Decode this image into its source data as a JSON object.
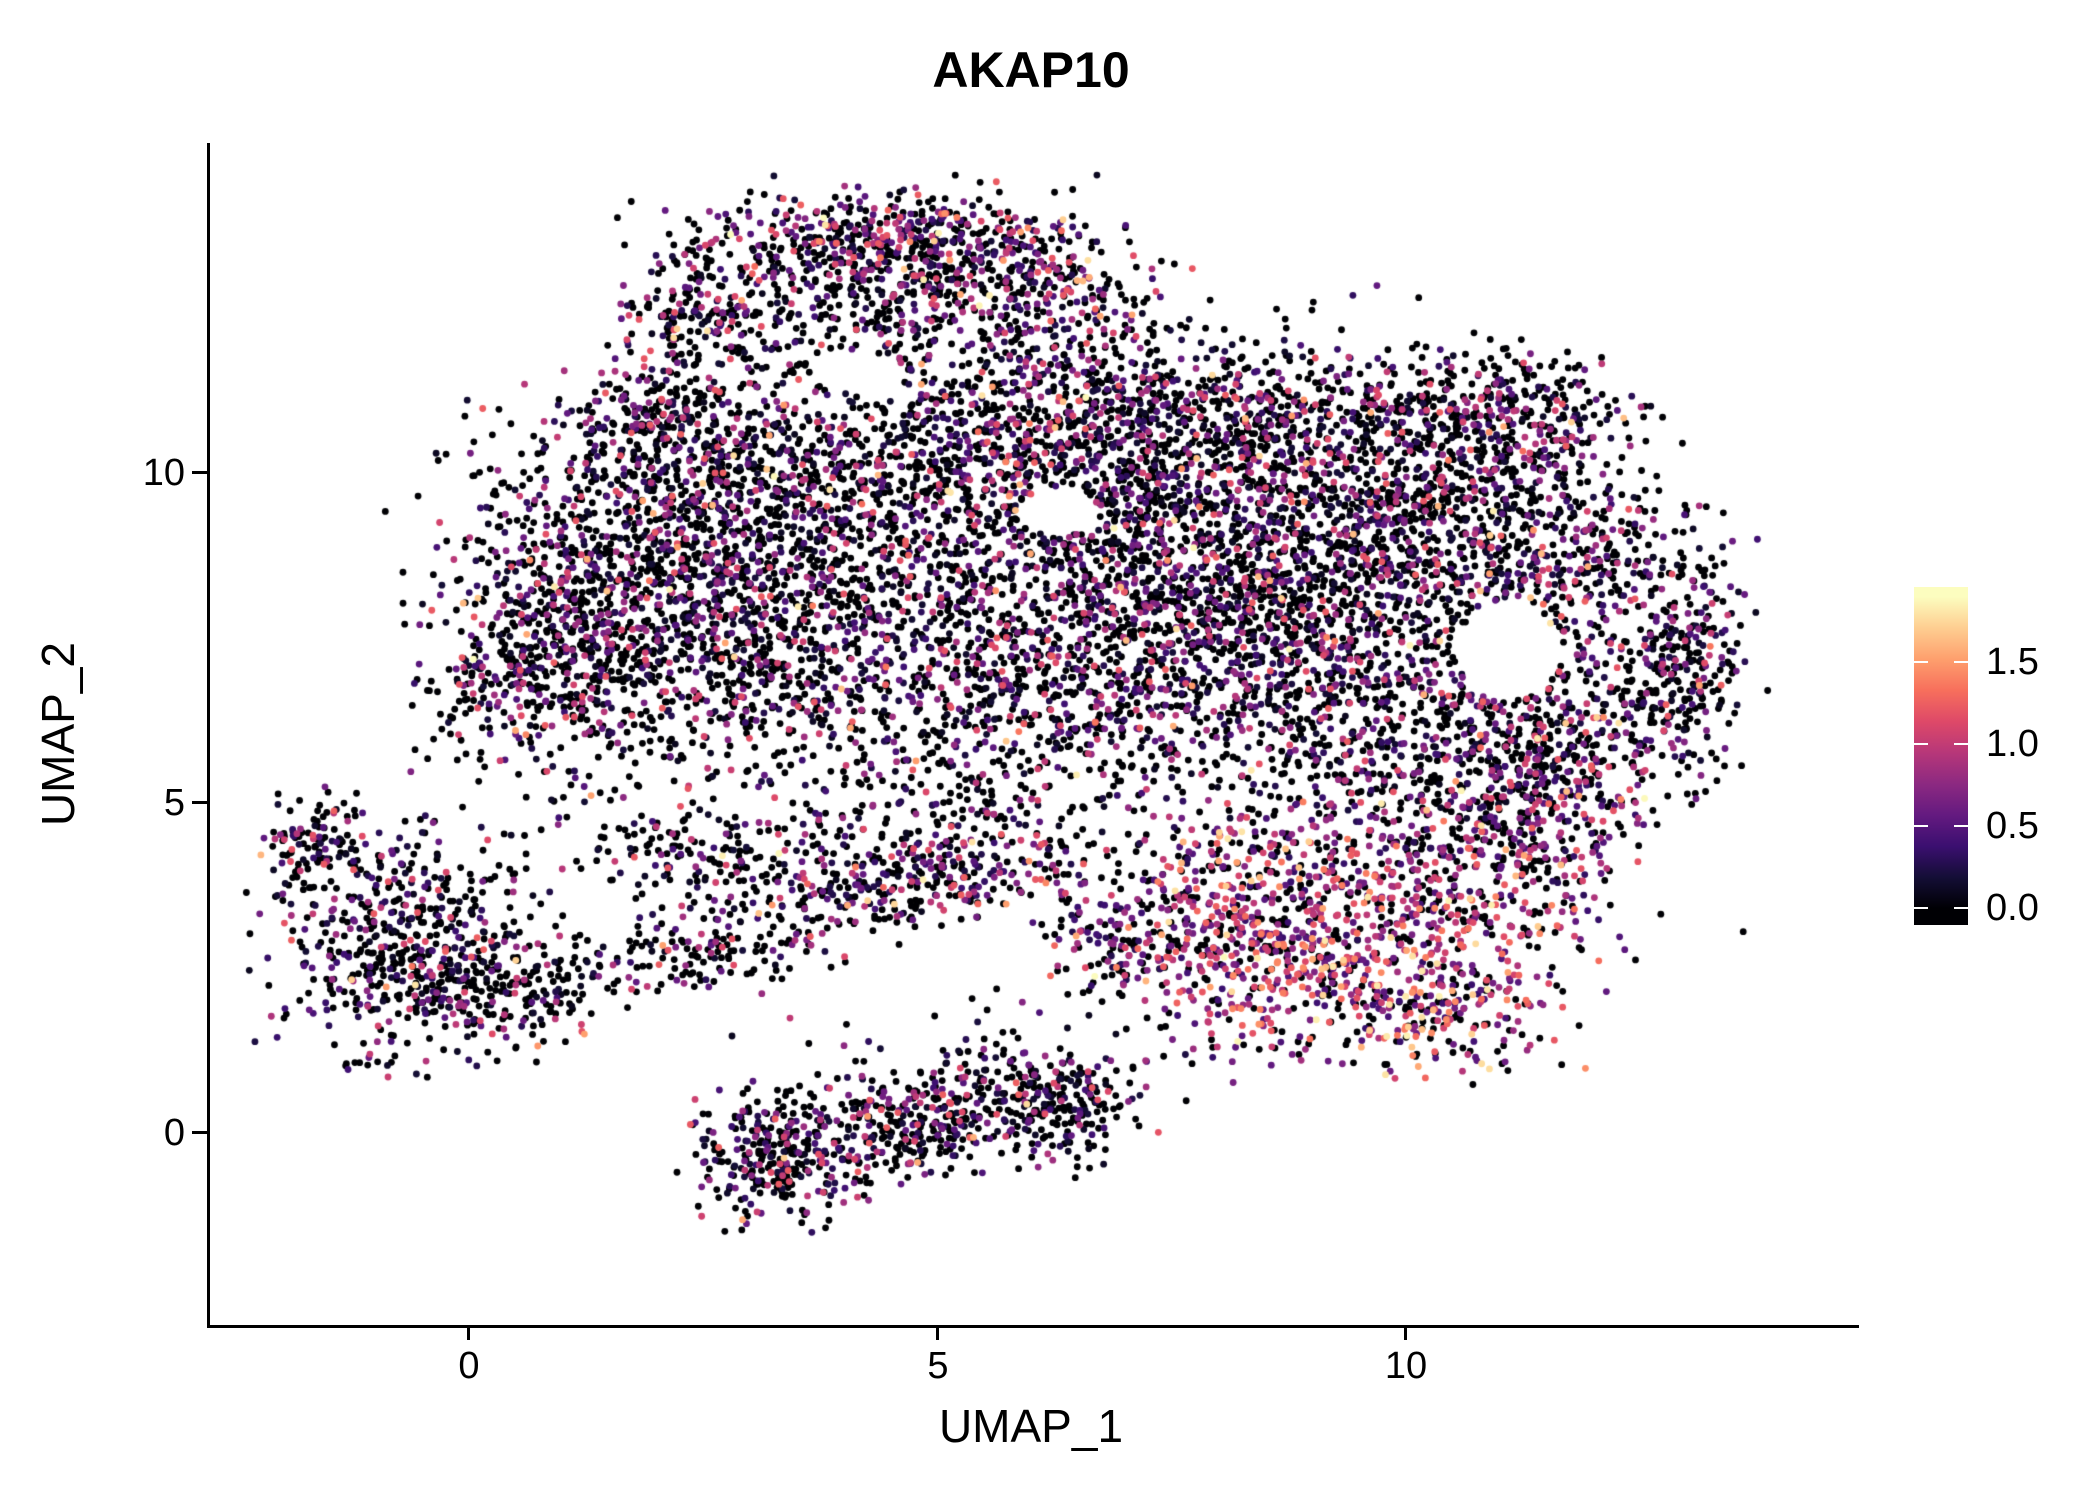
{
  "chart_data": {
    "type": "scatter",
    "title": "AKAP10",
    "xlabel": "UMAP_1",
    "ylabel": "UMAP_2",
    "x_tick_labels": [
      "0",
      "5",
      "10"
    ],
    "x_tick_values": [
      0,
      5,
      10
    ],
    "y_tick_labels": [
      "0",
      "5",
      "10"
    ],
    "y_tick_values": [
      0,
      5,
      10
    ],
    "xlim": [
      -2.8,
      14.8
    ],
    "ylim": [
      -2.9,
      15.0
    ],
    "background": "#FFFFFF",
    "axis_color": "#000000",
    "point_radius": 3.4,
    "seed": 1337,
    "legend_position": "right",
    "colorbar": {
      "tick_labels": [
        "0.0",
        "0.5",
        "1.0",
        "1.5"
      ],
      "tick_values": [
        0.0,
        0.5,
        1.0,
        1.5
      ],
      "vmin": 0,
      "vmax": 1.9,
      "bar_range": [
        -0.1,
        1.96
      ],
      "colormap": "magma",
      "stops": [
        [
          0.0,
          "#000004"
        ],
        [
          0.1,
          "#140E36"
        ],
        [
          0.2,
          "#3B0F70"
        ],
        [
          0.3,
          "#641A80"
        ],
        [
          0.4,
          "#8C2981"
        ],
        [
          0.5,
          "#B73779"
        ],
        [
          0.6,
          "#DE4968"
        ],
        [
          0.7,
          "#F76F5C"
        ],
        [
          0.8,
          "#FE9F6D"
        ],
        [
          0.9,
          "#FECE91"
        ],
        [
          1.0,
          "#FCFDBF"
        ]
      ]
    },
    "clusters_format": [
      "cx",
      "cy",
      "sx",
      "sy",
      "n",
      "hot_level"
    ],
    "clusters": [
      [
        1.4,
        8.2,
        0.95,
        1.4,
        850,
        0
      ],
      [
        0.6,
        7.0,
        0.55,
        0.85,
        250,
        0
      ],
      [
        3.0,
        9.2,
        1.1,
        1.1,
        650,
        0
      ],
      [
        3.3,
        6.9,
        1.1,
        1.0,
        500,
        0
      ],
      [
        5.2,
        8.4,
        1.3,
        1.3,
        600,
        0
      ],
      [
        4.6,
        10.5,
        1.3,
        0.8,
        500,
        0
      ],
      [
        4.3,
        12.8,
        1.2,
        0.75,
        600,
        0
      ],
      [
        4.3,
        13.6,
        1.0,
        0.3,
        260,
        1
      ],
      [
        2.3,
        12.4,
        0.4,
        0.35,
        130,
        0
      ],
      [
        6.7,
        9.7,
        1.0,
        1.0,
        450,
        0
      ],
      [
        7.8,
        8.3,
        1.3,
        1.3,
        780,
        0
      ],
      [
        9.3,
        8.9,
        1.2,
        1.1,
        680,
        0
      ],
      [
        9.0,
        6.7,
        1.2,
        1.0,
        550,
        0
      ],
      [
        10.8,
        9.3,
        1.0,
        0.9,
        450,
        0
      ],
      [
        11.8,
        7.6,
        0.85,
        1.15,
        400,
        0
      ],
      [
        12.95,
        7.2,
        0.3,
        1.0,
        230,
        0
      ],
      [
        10.7,
        5.7,
        0.9,
        0.7,
        300,
        0
      ],
      [
        6.3,
        6.6,
        1.0,
        0.8,
        350,
        0
      ],
      [
        2.1,
        10.8,
        0.6,
        0.55,
        220,
        0
      ],
      [
        7.0,
        11.2,
        1.0,
        0.65,
        330,
        0
      ],
      [
        8.4,
        10.7,
        0.9,
        0.55,
        280,
        0
      ],
      [
        10.2,
        10.8,
        0.8,
        0.55,
        240,
        0
      ],
      [
        11.3,
        11.0,
        0.55,
        0.45,
        160,
        0
      ],
      [
        6.0,
        12.9,
        0.7,
        0.45,
        200,
        1
      ],
      [
        9.6,
        3.0,
        1.15,
        1.0,
        650,
        2
      ],
      [
        8.3,
        2.6,
        0.7,
        0.65,
        250,
        2
      ],
      [
        10.9,
        4.3,
        0.8,
        0.75,
        300,
        1
      ],
      [
        11.6,
        5.5,
        0.55,
        0.8,
        200,
        1
      ],
      [
        10.3,
        1.9,
        0.6,
        0.5,
        150,
        2
      ],
      [
        8.2,
        4.2,
        0.7,
        0.5,
        150,
        1
      ],
      [
        -0.7,
        2.9,
        0.75,
        0.9,
        560,
        0
      ],
      [
        -1.7,
        4.45,
        0.25,
        0.4,
        90,
        0
      ],
      [
        0.3,
        2.1,
        0.5,
        0.45,
        150,
        0
      ],
      [
        3.3,
        -0.35,
        0.5,
        0.5,
        280,
        0
      ],
      [
        4.4,
        0.1,
        0.65,
        0.45,
        220,
        0
      ],
      [
        5.6,
        0.35,
        0.75,
        0.45,
        260,
        0
      ],
      [
        6.4,
        0.6,
        0.4,
        0.35,
        100,
        0
      ],
      [
        5.0,
        3.9,
        1.2,
        0.35,
        260,
        1
      ],
      [
        3.6,
        3.6,
        0.9,
        0.45,
        150,
        0
      ],
      [
        2.2,
        4.4,
        0.6,
        0.35,
        110,
        0
      ],
      [
        1.7,
        2.5,
        0.9,
        0.3,
        80,
        0
      ],
      [
        2.7,
        2.8,
        0.6,
        0.3,
        80,
        0
      ],
      [
        7.1,
        2.9,
        0.5,
        0.4,
        130,
        1
      ],
      [
        4.9,
        4.7,
        0.8,
        0.45,
        140,
        0
      ],
      [
        6.5,
        7.8,
        3.3,
        2.4,
        420,
        0
      ],
      [
        6.0,
        1.5,
        1.5,
        0.55,
        60,
        0
      ]
    ],
    "holes_format": [
      "cx",
      "cy",
      "rx",
      "ry"
    ],
    "holes": [
      [
        11.05,
        7.3,
        0.55,
        0.75
      ],
      [
        6.25,
        9.4,
        0.45,
        0.35
      ],
      [
        4.1,
        11.5,
        0.5,
        0.3
      ]
    ]
  }
}
